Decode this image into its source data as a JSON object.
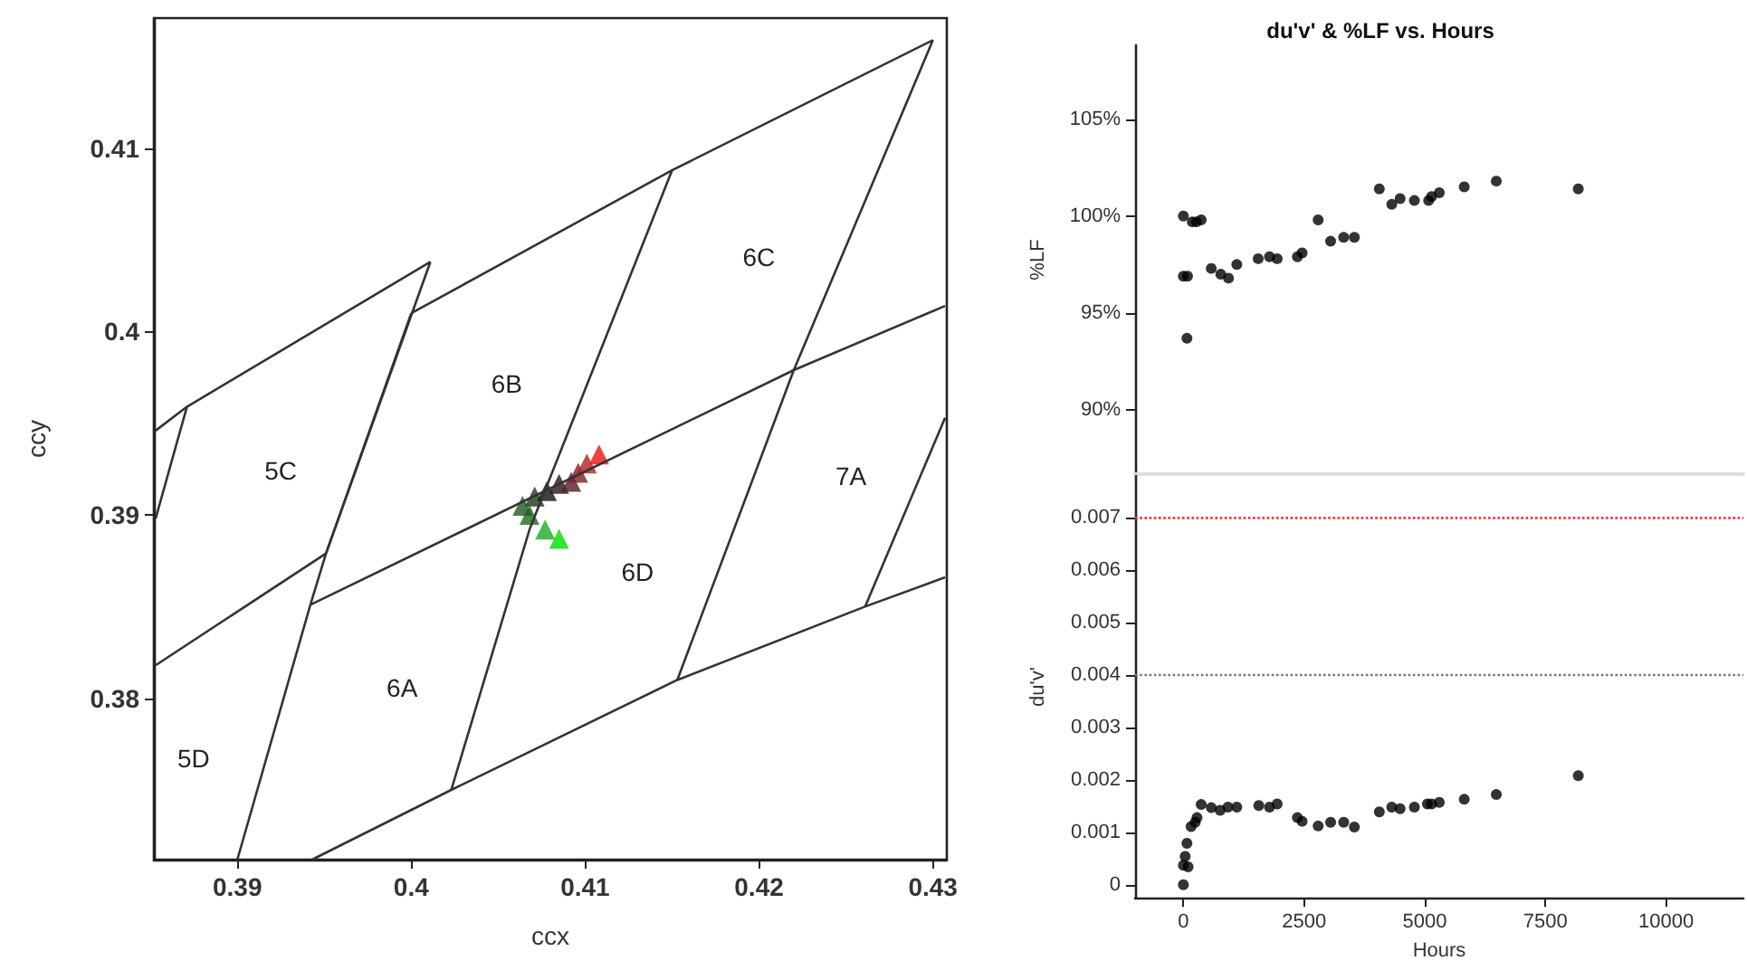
{
  "chart_data": [
    {
      "type": "scatter",
      "xlabel": "ccx",
      "ylabel": "ccy",
      "xlim": [
        0.3852,
        0.4308
      ],
      "ylim": [
        0.3712,
        0.4171
      ],
      "xticks": [
        0.39,
        0.4,
        0.41,
        0.42,
        0.43
      ],
      "yticks": [
        0.38,
        0.39,
        0.4,
        0.41
      ],
      "marker": "none",
      "series": [
        {
          "type": "line",
          "color": "#333333",
          "x": [
            0.4,
            0.415,
            0.43
          ],
          "values": [
            0.401,
            0.4088,
            0.4159
          ]
        },
        {
          "type": "line",
          "color": "#333333",
          "x": [
            0.3853,
            0.3871,
            0.4011
          ],
          "values": [
            0.3946,
            0.3959,
            0.4038
          ]
        },
        {
          "type": "line",
          "color": "#333333",
          "x": [
            0.4011,
            0.3951,
            0.3942,
            0.39
          ],
          "values": [
            0.4038,
            0.3879,
            0.3851,
            0.3712
          ]
        },
        {
          "type": "line",
          "color": "#333333",
          "x": [
            0.4,
            0.3951
          ],
          "values": [
            0.401,
            0.3879
          ]
        },
        {
          "type": "line",
          "color": "#333333",
          "x": [
            0.3853,
            0.3951
          ],
          "values": [
            0.3818,
            0.3879
          ]
        },
        {
          "type": "line",
          "color": "#333333",
          "x": [
            0.3942,
            0.422,
            0.4307
          ],
          "values": [
            0.3851,
            0.3979,
            0.4014
          ]
        },
        {
          "type": "line",
          "color": "#333333",
          "x": [
            0.3871,
            0.3853
          ],
          "values": [
            0.3959,
            0.3898
          ]
        },
        {
          "type": "line",
          "color": "#333333",
          "x": [
            0.415,
            0.4068,
            0.4023
          ],
          "values": [
            0.4088,
            0.3892,
            0.375
          ]
        },
        {
          "type": "line",
          "color": "#333333",
          "x": [
            0.43,
            0.422,
            0.4153
          ],
          "values": [
            0.4159,
            0.3979,
            0.381
          ]
        },
        {
          "type": "line",
          "color": "#333333",
          "x": [
            0.4307,
            0.4261
          ],
          "values": [
            0.3953,
            0.385
          ]
        },
        {
          "type": "line",
          "color": "#333333",
          "x": [
            0.3943,
            0.4023,
            0.4153,
            0.4261,
            0.4307
          ],
          "values": [
            0.3712,
            0.375,
            0.381,
            0.385,
            0.3866
          ]
        },
        {
          "marker": "triangle",
          "x": [
            0.4085,
            0.4077,
            0.4068,
            0.4064,
            0.4071,
            0.4078,
            0.4085,
            0.4092,
            0.4096,
            0.4101,
            0.4108
          ],
          "values": [
            0.3887,
            0.3892,
            0.39,
            0.3905,
            0.391,
            0.3913,
            0.3917,
            0.3918,
            0.3923,
            0.3928,
            0.3933
          ],
          "colors": [
            "#00dd00",
            "#22aa22",
            "#1a6a1a",
            "#205a20",
            "#1a3a1a",
            "#111111",
            "#2a1515",
            "#502020",
            "#802020",
            "#b02020",
            "#ee1111"
          ]
        }
      ],
      "annotations": [
        "5C",
        "6B",
        "6C",
        "7A",
        "6D",
        "6A",
        "5D"
      ]
    },
    {
      "type": "scatter",
      "title": "du'v' & %LF vs. Hours",
      "ylabel": "%LF",
      "marker": "circle",
      "tick_labels": "y",
      "xlim": [
        -1000,
        11600
      ],
      "xticks": [
        0,
        2500,
        5000,
        7500,
        10000
      ],
      "ylim": [
        86.7,
        108.8
      ],
      "yticks": [
        {
          "value": 90,
          "label": "90%"
        },
        {
          "value": 95,
          "label": "95%"
        },
        {
          "value": 100,
          "label": "100%"
        },
        {
          "value": 105,
          "label": "105%"
        }
      ],
      "series": [
        {
          "color": "#000000",
          "x": [
            0,
            0,
            86,
            74,
            185,
            271,
            369,
            578,
            775,
            935,
            1107,
            1550,
            1784,
            1943,
            2362,
            2460,
            2792,
            3050,
            3321,
            3542,
            4059,
            4317,
            4490,
            4785,
            5080,
            5141,
            5301,
            5818,
            6482,
            8180
          ],
          "values": [
            100.0,
            96.9,
            96.9,
            93.7,
            99.7,
            99.7,
            99.8,
            97.3,
            97.0,
            96.8,
            97.5,
            97.8,
            97.9,
            97.8,
            97.9,
            98.1,
            99.8,
            98.7,
            98.9,
            98.9,
            101.4,
            100.6,
            100.9,
            100.8,
            100.8,
            101.0,
            101.2,
            101.5,
            101.8,
            101.4
          ]
        }
      ]
    },
    {
      "type": "scatter",
      "xlabel": "Hours",
      "ylabel": "du'v'",
      "marker": "circle",
      "xlim": [
        -1000,
        11600
      ],
      "xticks": [
        0,
        2500,
        5000,
        7500,
        10000
      ],
      "ylim": [
        -0.00025,
        0.0078
      ],
      "yticks": [
        0,
        0.001,
        0.002,
        0.003,
        0.004,
        0.005,
        0.006,
        0.007
      ],
      "ref_lines": [
        {
          "axis": "y",
          "value": 0.007,
          "color": "#ff3333",
          "line_style": "dotted"
        },
        {
          "axis": "y",
          "value": 0.004,
          "color": "#777777",
          "line_style": "dotted"
        }
      ],
      "series": [
        {
          "color": "#000000",
          "x": [
            0,
            0,
            37,
            98,
            74,
            160,
            246,
            283,
            369,
            578,
            763,
            923,
            1107,
            1562,
            1784,
            1943,
            2362,
            2460,
            2792,
            3050,
            3321,
            3542,
            4059,
            4317,
            4490,
            4785,
            5055,
            5141,
            5301,
            5818,
            6482,
            8180
          ],
          "values": [
            0,
            0.00037,
            0.00054,
            0.00034,
            0.00079,
            0.00111,
            0.00119,
            0.00128,
            0.00153,
            0.00147,
            0.00142,
            0.00148,
            0.00148,
            0.00151,
            0.00148,
            0.00154,
            0.00128,
            0.00121,
            0.00112,
            0.00119,
            0.00119,
            0.0011,
            0.00139,
            0.00148,
            0.00145,
            0.00148,
            0.00154,
            0.00154,
            0.00157,
            0.00163,
            0.00172,
            0.00208
          ]
        }
      ]
    }
  ]
}
